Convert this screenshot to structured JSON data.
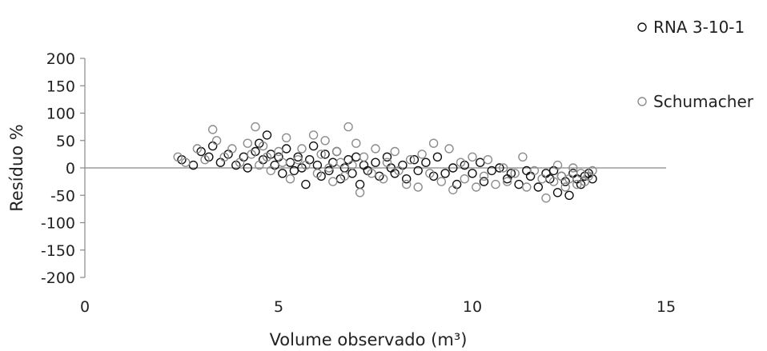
{
  "chart_data": {
    "type": "scatter",
    "title": "",
    "xlabel": "Volume observado (m³)",
    "ylabel": "Resíduo %",
    "xlim": [
      0,
      15
    ],
    "ylim": [
      -200,
      200
    ],
    "xticks": [
      "0",
      "5",
      "10",
      "15"
    ],
    "yticks": [
      "200",
      "150",
      "100",
      "50",
      "0",
      "-50",
      "-100",
      "-150",
      "-200"
    ],
    "grid": false,
    "legend_position": "top-right",
    "series": [
      {
        "name": "RNA 3-10-1",
        "color": "#111111",
        "marker": "hollow-circle",
        "points": [
          [
            2.5,
            15
          ],
          [
            2.8,
            5
          ],
          [
            3.0,
            30
          ],
          [
            3.2,
            20
          ],
          [
            3.3,
            40
          ],
          [
            3.5,
            10
          ],
          [
            3.7,
            25
          ],
          [
            3.9,
            5
          ],
          [
            4.1,
            20
          ],
          [
            4.2,
            0
          ],
          [
            4.4,
            30
          ],
          [
            4.5,
            45
          ],
          [
            4.6,
            15
          ],
          [
            4.7,
            60
          ],
          [
            4.8,
            25
          ],
          [
            4.9,
            5
          ],
          [
            5.0,
            20
          ],
          [
            5.1,
            -10
          ],
          [
            5.2,
            35
          ],
          [
            5.3,
            10
          ],
          [
            5.4,
            -5
          ],
          [
            5.5,
            20
          ],
          [
            5.6,
            0
          ],
          [
            5.7,
            -30
          ],
          [
            5.8,
            15
          ],
          [
            5.9,
            40
          ],
          [
            6.0,
            5
          ],
          [
            6.1,
            -15
          ],
          [
            6.2,
            25
          ],
          [
            6.3,
            -5
          ],
          [
            6.4,
            10
          ],
          [
            6.5,
            30
          ],
          [
            6.6,
            -20
          ],
          [
            6.7,
            0
          ],
          [
            6.8,
            15
          ],
          [
            6.9,
            -10
          ],
          [
            7.0,
            20
          ],
          [
            7.1,
            -30
          ],
          [
            7.2,
            5
          ],
          [
            7.3,
            -5
          ],
          [
            7.5,
            10
          ],
          [
            7.6,
            -15
          ],
          [
            7.8,
            20
          ],
          [
            7.9,
            0
          ],
          [
            8.0,
            -10
          ],
          [
            8.2,
            5
          ],
          [
            8.3,
            -20
          ],
          [
            8.5,
            15
          ],
          [
            8.6,
            -5
          ],
          [
            8.8,
            10
          ],
          [
            9.0,
            -15
          ],
          [
            9.1,
            20
          ],
          [
            9.3,
            -10
          ],
          [
            9.5,
            0
          ],
          [
            9.6,
            -30
          ],
          [
            9.8,
            5
          ],
          [
            10.0,
            -10
          ],
          [
            10.2,
            10
          ],
          [
            10.3,
            -25
          ],
          [
            10.5,
            -5
          ],
          [
            10.7,
            0
          ],
          [
            10.9,
            -20
          ],
          [
            11.0,
            -10
          ],
          [
            11.2,
            -30
          ],
          [
            11.4,
            -5
          ],
          [
            11.5,
            -15
          ],
          [
            11.7,
            -35
          ],
          [
            11.9,
            -10
          ],
          [
            12.0,
            -20
          ],
          [
            12.1,
            -5
          ],
          [
            12.2,
            -45
          ],
          [
            12.3,
            -15
          ],
          [
            12.4,
            -25
          ],
          [
            12.5,
            -50
          ],
          [
            12.6,
            -10
          ],
          [
            12.7,
            -20
          ],
          [
            12.8,
            -30
          ],
          [
            12.9,
            -15
          ],
          [
            13.0,
            -10
          ],
          [
            13.1,
            -20
          ]
        ]
      },
      {
        "name": "Schumacher",
        "color": "#8c8c8c",
        "marker": "hollow-circle",
        "points": [
          [
            2.4,
            20
          ],
          [
            2.6,
            10
          ],
          [
            2.9,
            35
          ],
          [
            3.1,
            15
          ],
          [
            3.3,
            70
          ],
          [
            3.4,
            50
          ],
          [
            3.6,
            20
          ],
          [
            3.8,
            35
          ],
          [
            4.0,
            10
          ],
          [
            4.2,
            45
          ],
          [
            4.3,
            25
          ],
          [
            4.4,
            75
          ],
          [
            4.5,
            5
          ],
          [
            4.6,
            40
          ],
          [
            4.7,
            20
          ],
          [
            4.8,
            -5
          ],
          [
            5.0,
            30
          ],
          [
            5.1,
            10
          ],
          [
            5.2,
            55
          ],
          [
            5.3,
            -20
          ],
          [
            5.5,
            15
          ],
          [
            5.6,
            35
          ],
          [
            5.7,
            5
          ],
          [
            5.9,
            60
          ],
          [
            6.0,
            -10
          ],
          [
            6.1,
            25
          ],
          [
            6.2,
            50
          ],
          [
            6.3,
            0
          ],
          [
            6.4,
            -25
          ],
          [
            6.5,
            30
          ],
          [
            6.6,
            10
          ],
          [
            6.7,
            -15
          ],
          [
            6.8,
            75
          ],
          [
            6.9,
            5
          ],
          [
            7.0,
            45
          ],
          [
            7.1,
            -45
          ],
          [
            7.2,
            20
          ],
          [
            7.4,
            -10
          ],
          [
            7.5,
            35
          ],
          [
            7.7,
            -20
          ],
          [
            7.8,
            10
          ],
          [
            8.0,
            30
          ],
          [
            8.1,
            -5
          ],
          [
            8.3,
            -30
          ],
          [
            8.4,
            15
          ],
          [
            8.6,
            -35
          ],
          [
            8.7,
            25
          ],
          [
            8.9,
            -10
          ],
          [
            9.0,
            45
          ],
          [
            9.2,
            -25
          ],
          [
            9.4,
            35
          ],
          [
            9.5,
            -40
          ],
          [
            9.7,
            10
          ],
          [
            9.8,
            -20
          ],
          [
            10.0,
            20
          ],
          [
            10.1,
            -35
          ],
          [
            10.3,
            -15
          ],
          [
            10.4,
            15
          ],
          [
            10.6,
            -30
          ],
          [
            10.8,
            0
          ],
          [
            10.9,
            -25
          ],
          [
            11.1,
            -10
          ],
          [
            11.3,
            20
          ],
          [
            11.4,
            -35
          ],
          [
            11.6,
            -5
          ],
          [
            11.8,
            -20
          ],
          [
            11.9,
            -55
          ],
          [
            12.1,
            -25
          ],
          [
            12.2,
            5
          ],
          [
            12.3,
            -15
          ],
          [
            12.4,
            -35
          ],
          [
            12.5,
            -20
          ],
          [
            12.6,
            0
          ],
          [
            12.7,
            -30
          ],
          [
            12.8,
            -10
          ],
          [
            12.9,
            -25
          ],
          [
            13.0,
            -15
          ],
          [
            13.1,
            -5
          ]
        ]
      }
    ]
  }
}
